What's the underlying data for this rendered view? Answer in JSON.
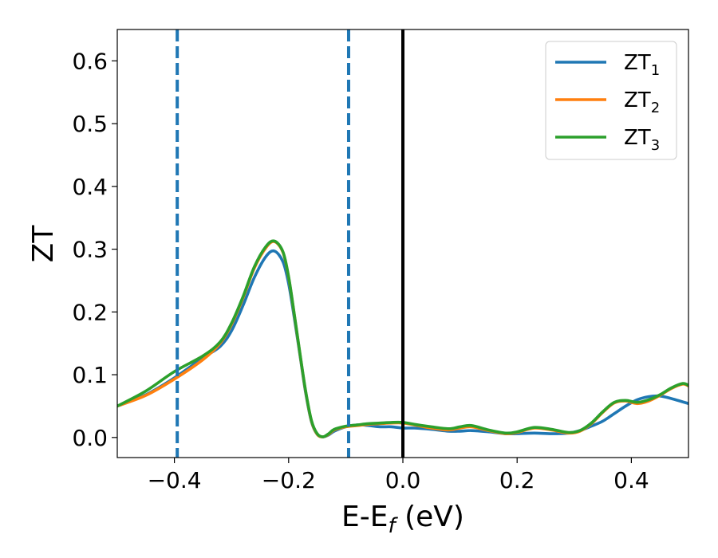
{
  "chart_data": {
    "type": "line",
    "xlabel_main": "E-E",
    "xlabel_sub": "f",
    "xlabel_unit": " (eV)",
    "ylabel": "ZT",
    "xlim": [
      -0.5,
      0.5
    ],
    "ylim": [
      -0.032,
      0.65
    ],
    "xticks": [
      -0.4,
      -0.2,
      0.0,
      0.2,
      0.4
    ],
    "xtick_labels": [
      "−0.4",
      "−0.2",
      "0.0",
      "0.2",
      "0.4"
    ],
    "yticks": [
      0.0,
      0.1,
      0.2,
      0.3,
      0.4,
      0.5,
      0.6
    ],
    "ytick_labels": [
      "0.0",
      "0.1",
      "0.2",
      "0.3",
      "0.4",
      "0.5",
      "0.6"
    ],
    "grid": false,
    "legend_position": "top-right",
    "vlines": [
      {
        "x": -0.395,
        "style": "dashed",
        "color": "#1f77b4"
      },
      {
        "x": -0.095,
        "style": "dashed",
        "color": "#1f77b4"
      },
      {
        "x": 0.0,
        "style": "solid",
        "color": "#000000"
      }
    ],
    "series": [
      {
        "name": "ZT",
        "sub": "1",
        "color": "#1f77b4",
        "points": [
          [
            -0.5,
            0.05
          ],
          [
            -0.45,
            0.068
          ],
          [
            -0.4,
            0.095
          ],
          [
            -0.35,
            0.127
          ],
          [
            -0.32,
            0.145
          ],
          [
            -0.3,
            0.17
          ],
          [
            -0.28,
            0.21
          ],
          [
            -0.26,
            0.255
          ],
          [
            -0.24,
            0.288
          ],
          [
            -0.225,
            0.297
          ],
          [
            -0.21,
            0.28
          ],
          [
            -0.2,
            0.245
          ],
          [
            -0.19,
            0.19
          ],
          [
            -0.18,
            0.13
          ],
          [
            -0.17,
            0.07
          ],
          [
            -0.16,
            0.025
          ],
          [
            -0.15,
            0.005
          ],
          [
            -0.14,
            0.001
          ],
          [
            -0.13,
            0.004
          ],
          [
            -0.12,
            0.01
          ],
          [
            -0.1,
            0.017
          ],
          [
            -0.08,
            0.02
          ],
          [
            -0.06,
            0.019
          ],
          [
            -0.04,
            0.017
          ],
          [
            -0.02,
            0.017
          ],
          [
            0.0,
            0.015
          ],
          [
            0.02,
            0.015
          ],
          [
            0.05,
            0.013
          ],
          [
            0.08,
            0.01
          ],
          [
            0.1,
            0.01
          ],
          [
            0.12,
            0.011
          ],
          [
            0.15,
            0.009
          ],
          [
            0.18,
            0.006
          ],
          [
            0.2,
            0.006
          ],
          [
            0.23,
            0.007
          ],
          [
            0.26,
            0.006
          ],
          [
            0.29,
            0.007
          ],
          [
            0.31,
            0.011
          ],
          [
            0.33,
            0.018
          ],
          [
            0.35,
            0.026
          ],
          [
            0.37,
            0.038
          ],
          [
            0.39,
            0.05
          ],
          [
            0.41,
            0.06
          ],
          [
            0.43,
            0.065
          ],
          [
            0.45,
            0.066
          ],
          [
            0.47,
            0.062
          ],
          [
            0.5,
            0.054
          ]
        ]
      },
      {
        "name": "ZT",
        "sub": "2",
        "color": "#ff7f0e",
        "points": [
          [
            -0.5,
            0.05
          ],
          [
            -0.45,
            0.067
          ],
          [
            -0.4,
            0.093
          ],
          [
            -0.35,
            0.124
          ],
          [
            -0.32,
            0.15
          ],
          [
            -0.3,
            0.18
          ],
          [
            -0.28,
            0.222
          ],
          [
            -0.26,
            0.27
          ],
          [
            -0.24,
            0.302
          ],
          [
            -0.225,
            0.312
          ],
          [
            -0.21,
            0.295
          ],
          [
            -0.2,
            0.255
          ],
          [
            -0.19,
            0.195
          ],
          [
            -0.18,
            0.132
          ],
          [
            -0.17,
            0.072
          ],
          [
            -0.16,
            0.026
          ],
          [
            -0.15,
            0.005
          ],
          [
            -0.14,
            0.001
          ],
          [
            -0.13,
            0.005
          ],
          [
            -0.12,
            0.012
          ],
          [
            -0.1,
            0.017
          ],
          [
            -0.08,
            0.019
          ],
          [
            -0.06,
            0.021
          ],
          [
            -0.04,
            0.022
          ],
          [
            -0.02,
            0.023
          ],
          [
            0.0,
            0.023
          ],
          [
            0.02,
            0.02
          ],
          [
            0.05,
            0.015
          ],
          [
            0.08,
            0.012
          ],
          [
            0.1,
            0.015
          ],
          [
            0.12,
            0.017
          ],
          [
            0.15,
            0.011
          ],
          [
            0.18,
            0.006
          ],
          [
            0.2,
            0.008
          ],
          [
            0.23,
            0.015
          ],
          [
            0.26,
            0.012
          ],
          [
            0.29,
            0.007
          ],
          [
            0.31,
            0.01
          ],
          [
            0.33,
            0.022
          ],
          [
            0.35,
            0.04
          ],
          [
            0.37,
            0.055
          ],
          [
            0.39,
            0.058
          ],
          [
            0.41,
            0.054
          ],
          [
            0.43,
            0.058
          ],
          [
            0.45,
            0.067
          ],
          [
            0.47,
            0.078
          ],
          [
            0.49,
            0.085
          ],
          [
            0.5,
            0.082
          ]
        ]
      },
      {
        "name": "ZT",
        "sub": "3",
        "color": "#2ca02c",
        "points": [
          [
            -0.5,
            0.05
          ],
          [
            -0.45,
            0.074
          ],
          [
            -0.4,
            0.105
          ],
          [
            -0.35,
            0.13
          ],
          [
            -0.32,
            0.152
          ],
          [
            -0.3,
            0.182
          ],
          [
            -0.28,
            0.224
          ],
          [
            -0.26,
            0.272
          ],
          [
            -0.24,
            0.304
          ],
          [
            -0.225,
            0.313
          ],
          [
            -0.21,
            0.296
          ],
          [
            -0.2,
            0.256
          ],
          [
            -0.19,
            0.196
          ],
          [
            -0.18,
            0.133
          ],
          [
            -0.17,
            0.073
          ],
          [
            -0.16,
            0.027
          ],
          [
            -0.15,
            0.006
          ],
          [
            -0.14,
            0.001
          ],
          [
            -0.13,
            0.006
          ],
          [
            -0.12,
            0.013
          ],
          [
            -0.1,
            0.018
          ],
          [
            -0.08,
            0.02
          ],
          [
            -0.06,
            0.022
          ],
          [
            -0.04,
            0.023
          ],
          [
            -0.02,
            0.024
          ],
          [
            0.0,
            0.024
          ],
          [
            0.02,
            0.021
          ],
          [
            0.05,
            0.017
          ],
          [
            0.08,
            0.014
          ],
          [
            0.1,
            0.017
          ],
          [
            0.12,
            0.019
          ],
          [
            0.15,
            0.012
          ],
          [
            0.18,
            0.007
          ],
          [
            0.2,
            0.009
          ],
          [
            0.23,
            0.016
          ],
          [
            0.26,
            0.013
          ],
          [
            0.29,
            0.008
          ],
          [
            0.31,
            0.011
          ],
          [
            0.33,
            0.023
          ],
          [
            0.35,
            0.041
          ],
          [
            0.37,
            0.056
          ],
          [
            0.39,
            0.059
          ],
          [
            0.41,
            0.056
          ],
          [
            0.43,
            0.06
          ],
          [
            0.45,
            0.068
          ],
          [
            0.47,
            0.079
          ],
          [
            0.49,
            0.086
          ],
          [
            0.5,
            0.083
          ]
        ]
      }
    ]
  }
}
